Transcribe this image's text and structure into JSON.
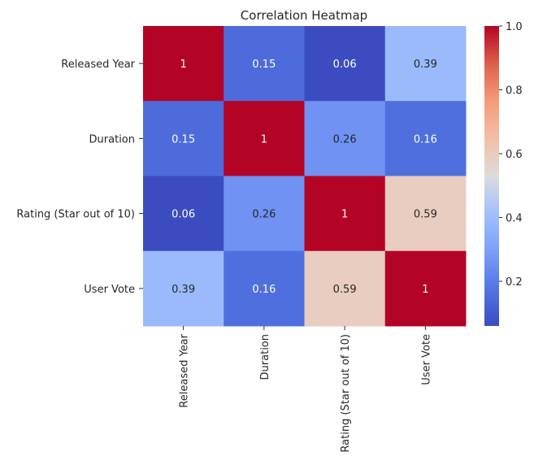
{
  "chart_data": {
    "type": "heatmap",
    "title": "Correlation Heatmap",
    "x_categories": [
      "Released Year",
      "Duration",
      "Rating (Star out of 10)",
      "User Vote"
    ],
    "y_categories": [
      "Released Year",
      "Duration",
      "Rating (Star out of 10)",
      "User Vote"
    ],
    "values": [
      [
        1,
        0.15,
        0.06,
        0.39
      ],
      [
        0.15,
        1,
        0.26,
        0.16
      ],
      [
        0.06,
        0.26,
        1,
        0.59
      ],
      [
        0.39,
        0.16,
        0.59,
        1
      ]
    ],
    "cell_labels": [
      [
        "1",
        "0.15",
        "0.06",
        "0.39"
      ],
      [
        "0.15",
        "1",
        "0.26",
        "0.16"
      ],
      [
        "0.06",
        "0.26",
        "1",
        "0.59"
      ],
      [
        "0.39",
        "0.16",
        "0.59",
        "1"
      ]
    ],
    "colormap": "coolwarm",
    "color_range": [
      0.06,
      1.0
    ],
    "colorbar": {
      "ticks": [
        0.2,
        0.4,
        0.6,
        0.8,
        1.0
      ],
      "tick_labels": [
        "0.2",
        "0.4",
        "0.6",
        "0.8",
        "1.0"
      ]
    },
    "grid": false,
    "legend": "colorbar-right"
  }
}
